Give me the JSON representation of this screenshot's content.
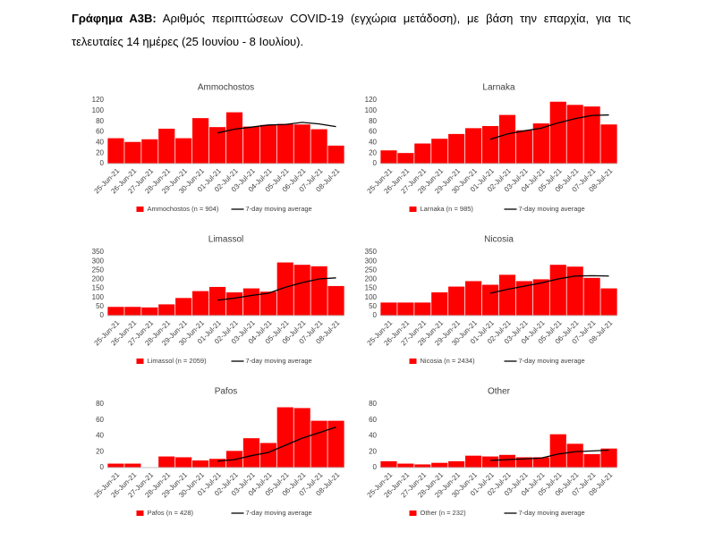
{
  "caption": {
    "label": "Γράφημα Α3Β:",
    "text": "Αριθμός περιπτώσεων COVID-19 (εγχώρια μετάδοση), με βάση την επαρχία, για τις τελευταίες 14 ημέρες (25 Ιουνίου - 8 Ιουλίου)."
  },
  "chart_data": [
    {
      "type": "bar",
      "title": "Ammochostos",
      "categories": [
        "25-Jun-21",
        "26-Jun-21",
        "27-Jun-21",
        "28-Jun-21",
        "29-Jun-21",
        "30-Jun-21",
        "01-Jul-21",
        "02-Jul-21",
        "03-Jul-21",
        "04-Jul-21",
        "05-Jul-21",
        "06-Jul-21",
        "07-Jul-21",
        "08-Jul-21"
      ],
      "series": [
        {
          "name": "Ammochostos (n = 904)",
          "type": "bar",
          "color": "#ff0000",
          "values": [
            48,
            41,
            46,
            66,
            48,
            86,
            69,
            97,
            70,
            73,
            75,
            74,
            65,
            34
          ]
        },
        {
          "name": "7-day moving average",
          "type": "line",
          "color": "#000000",
          "values": [
            null,
            null,
            null,
            null,
            null,
            null,
            58,
            65,
            69,
            73,
            74,
            78,
            75,
            70
          ]
        }
      ],
      "ylim": [
        0,
        120
      ],
      "yticks": [
        0,
        20,
        40,
        60,
        80,
        100,
        120
      ],
      "grid": false
    },
    {
      "type": "bar",
      "title": "Larnaka",
      "categories": [
        "25-Jun-21",
        "26-Jun-21",
        "27-Jun-21",
        "28-Jun-21",
        "29-Jun-21",
        "30-Jun-21",
        "01-Jul-21",
        "02-Jul-21",
        "03-Jul-21",
        "04-Jul-21",
        "05-Jul-21",
        "06-Jul-21",
        "07-Jul-21",
        "08-Jul-21"
      ],
      "series": [
        {
          "name": "Larnaka (n = 985)",
          "type": "bar",
          "color": "#ff0000",
          "values": [
            25,
            20,
            38,
            47,
            56,
            67,
            71,
            92,
            63,
            76,
            117,
            111,
            108,
            74
          ]
        },
        {
          "name": "7-day moving average",
          "type": "line",
          "color": "#000000",
          "values": [
            null,
            null,
            null,
            null,
            null,
            null,
            46,
            56,
            62,
            67,
            77,
            85,
            91,
            92
          ]
        }
      ],
      "ylim": [
        0,
        120
      ],
      "yticks": [
        0,
        20,
        40,
        60,
        80,
        100,
        120
      ],
      "grid": false
    },
    {
      "type": "bar",
      "title": "Limassol",
      "categories": [
        "25-Jun-21",
        "26-Jun-21",
        "27-Jun-21",
        "28-Jun-21",
        "29-Jun-21",
        "30-Jun-21",
        "01-Jul-21",
        "02-Jul-21",
        "03-Jul-21",
        "04-Jul-21",
        "05-Jul-21",
        "06-Jul-21",
        "07-Jul-21",
        "08-Jul-21"
      ],
      "series": [
        {
          "name": "Limassol (n = 2059)",
          "type": "bar",
          "color": "#ff0000",
          "values": [
            48,
            48,
            45,
            62,
            97,
            135,
            158,
            128,
            150,
            132,
            293,
            280,
            272,
            163
          ]
        },
        {
          "name": "7-day moving average",
          "type": "line",
          "color": "#000000",
          "values": [
            null,
            null,
            null,
            null,
            null,
            null,
            85,
            96,
            111,
            123,
            156,
            182,
            202,
            208
          ]
        }
      ],
      "ylim": [
        0,
        350
      ],
      "yticks": [
        0,
        50,
        100,
        150,
        200,
        250,
        300,
        350
      ],
      "grid": false
    },
    {
      "type": "bar",
      "title": "Nicosia",
      "categories": [
        "25-Jun-21",
        "26-Jun-21",
        "27-Jun-21",
        "28-Jun-21",
        "29-Jun-21",
        "30-Jun-21",
        "01-Jul-21",
        "02-Jul-21",
        "03-Jul-21",
        "04-Jul-21",
        "05-Jul-21",
        "06-Jul-21",
        "07-Jul-21",
        "08-Jul-21"
      ],
      "series": [
        {
          "name": "Nicosia (n = 2434)",
          "type": "bar",
          "color": "#ff0000",
          "values": [
            72,
            72,
            72,
            128,
            160,
            190,
            170,
            225,
            190,
            200,
            280,
            270,
            208,
            150
          ]
        },
        {
          "name": "7-day moving average",
          "type": "line",
          "color": "#000000",
          "values": [
            null,
            null,
            null,
            null,
            null,
            null,
            123,
            145,
            162,
            180,
            202,
            218,
            220,
            218
          ]
        }
      ],
      "ylim": [
        0,
        350
      ],
      "yticks": [
        0,
        50,
        100,
        150,
        200,
        250,
        300,
        350
      ],
      "grid": false
    },
    {
      "type": "bar",
      "title": "Pafos",
      "categories": [
        "25-Jun-21",
        "26-Jun-21",
        "27-Jun-21",
        "28-Jun-21",
        "29-Jun-21",
        "30-Jun-21",
        "01-Jul-21",
        "02-Jul-21",
        "03-Jul-21",
        "04-Jul-21",
        "05-Jul-21",
        "06-Jul-21",
        "07-Jul-21",
        "08-Jul-21"
      ],
      "series": [
        {
          "name": "Pafos (n = 428)",
          "type": "bar",
          "color": "#ff0000",
          "values": [
            5,
            5,
            0,
            14,
            13,
            9,
            11,
            21,
            37,
            31,
            76,
            75,
            59,
            59
          ]
        },
        {
          "name": "7-day moving average",
          "type": "line",
          "color": "#000000",
          "values": [
            null,
            null,
            null,
            null,
            null,
            null,
            8,
            10,
            15,
            19,
            28,
            37,
            44,
            51
          ]
        }
      ],
      "ylim": [
        0,
        80
      ],
      "yticks": [
        0,
        20,
        40,
        60,
        80
      ],
      "grid": false
    },
    {
      "type": "bar",
      "title": "Other",
      "categories": [
        "25-Jun-21",
        "26-Jun-21",
        "27-Jun-21",
        "28-Jun-21",
        "29-Jun-21",
        "30-Jun-21",
        "01-Jul-21",
        "02-Jul-21",
        "03-Jul-21",
        "04-Jul-21",
        "05-Jul-21",
        "06-Jul-21",
        "07-Jul-21",
        "08-Jul-21"
      ],
      "series": [
        {
          "name": "Other (n = 232)",
          "type": "bar",
          "color": "#ff0000",
          "values": [
            8,
            5,
            4,
            6,
            8,
            15,
            14,
            16,
            13,
            13,
            42,
            30,
            17,
            24
          ]
        },
        {
          "name": "7-day moving average",
          "type": "line",
          "color": "#000000",
          "values": [
            null,
            null,
            null,
            null,
            null,
            null,
            9,
            10,
            11,
            12,
            17,
            20,
            21,
            22
          ]
        }
      ],
      "ylim": [
        0,
        80
      ],
      "yticks": [
        0,
        20,
        40,
        60,
        80
      ],
      "grid": false
    }
  ]
}
